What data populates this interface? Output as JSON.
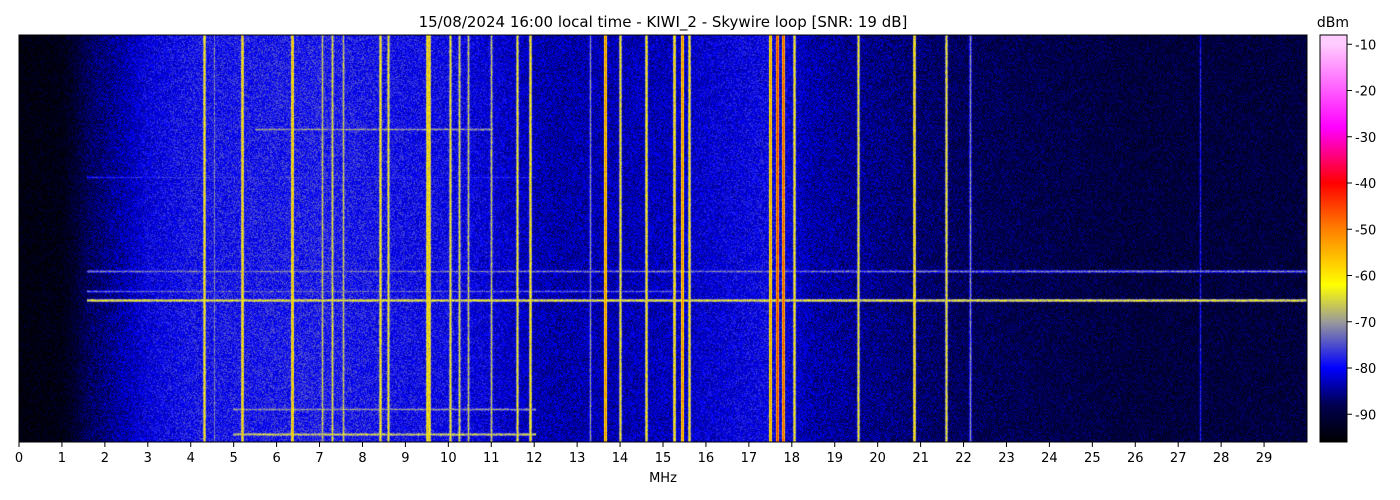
{
  "chart_data": {
    "type": "heatmap",
    "title": "15/08/2024 16:00 local time - KIWI_2 - Skywire loop [SNR: 19 dB]",
    "xlabel": "MHz",
    "ylabel": "",
    "xlim": [
      0,
      30
    ],
    "x_ticks": [
      "0",
      "1",
      "2",
      "3",
      "4",
      "5",
      "6",
      "7",
      "8",
      "9",
      "10",
      "11",
      "12",
      "13",
      "14",
      "15",
      "16",
      "17",
      "18",
      "19",
      "20",
      "21",
      "22",
      "23",
      "24",
      "25",
      "26",
      "27",
      "28",
      "29"
    ],
    "colorbar": {
      "label": "dBm",
      "range": [
        -96,
        -8
      ],
      "ticks": [
        "-10",
        "-20",
        "-30",
        "-40",
        "-50",
        "-60",
        "-70",
        "-80",
        "-90"
      ],
      "tick_values": [
        -10,
        -20,
        -30,
        -40,
        -50,
        -60,
        -70,
        -80,
        -90
      ],
      "stops": [
        {
          "value": -96,
          "color": "#000000"
        },
        {
          "value": -88,
          "color": "#000050"
        },
        {
          "value": -80,
          "color": "#0000ff"
        },
        {
          "value": -70,
          "color": "#9a9a9a"
        },
        {
          "value": -62,
          "color": "#ffff00"
        },
        {
          "value": -50,
          "color": "#ff8000"
        },
        {
          "value": -40,
          "color": "#ff0000"
        },
        {
          "value": -28,
          "color": "#ff00ff"
        },
        {
          "value": -10,
          "color": "#ffccff"
        }
      ]
    },
    "noise_floor_profile": [
      {
        "mhz": 0.0,
        "dbm": -95
      },
      {
        "mhz": 1.0,
        "dbm": -94
      },
      {
        "mhz": 1.6,
        "dbm": -88
      },
      {
        "mhz": 3.0,
        "dbm": -81
      },
      {
        "mhz": 4.0,
        "dbm": -79
      },
      {
        "mhz": 7.0,
        "dbm": -78
      },
      {
        "mhz": 10.0,
        "dbm": -80
      },
      {
        "mhz": 12.5,
        "dbm": -84
      },
      {
        "mhz": 15.0,
        "dbm": -83
      },
      {
        "mhz": 17.5,
        "dbm": -80
      },
      {
        "mhz": 18.5,
        "dbm": -84
      },
      {
        "mhz": 22.0,
        "dbm": -88
      },
      {
        "mhz": 26.0,
        "dbm": -90
      },
      {
        "mhz": 30.0,
        "dbm": -90
      }
    ],
    "vertical_signals": [
      {
        "mhz": 4.3,
        "dbm": -60
      },
      {
        "mhz": 4.55,
        "dbm": -72
      },
      {
        "mhz": 5.2,
        "dbm": -58
      },
      {
        "mhz": 6.35,
        "dbm": -56
      },
      {
        "mhz": 7.05,
        "dbm": -66
      },
      {
        "mhz": 7.3,
        "dbm": -64
      },
      {
        "mhz": 7.55,
        "dbm": -66
      },
      {
        "mhz": 8.4,
        "dbm": -60
      },
      {
        "mhz": 8.6,
        "dbm": -62
      },
      {
        "mhz": 9.5,
        "dbm": -58
      },
      {
        "mhz": 9.55,
        "dbm": -58
      },
      {
        "mhz": 10.05,
        "dbm": -62
      },
      {
        "mhz": 10.25,
        "dbm": -64
      },
      {
        "mhz": 10.45,
        "dbm": -66
      },
      {
        "mhz": 11.0,
        "dbm": -66
      },
      {
        "mhz": 11.6,
        "dbm": -62
      },
      {
        "mhz": 11.9,
        "dbm": -60
      },
      {
        "mhz": 13.3,
        "dbm": -70
      },
      {
        "mhz": 13.65,
        "dbm": -50
      },
      {
        "mhz": 14.0,
        "dbm": -62
      },
      {
        "mhz": 14.6,
        "dbm": -60
      },
      {
        "mhz": 15.25,
        "dbm": -58
      },
      {
        "mhz": 15.45,
        "dbm": -50
      },
      {
        "mhz": 15.6,
        "dbm": -60
      },
      {
        "mhz": 17.5,
        "dbm": -52
      },
      {
        "mhz": 17.65,
        "dbm": -44
      },
      {
        "mhz": 17.8,
        "dbm": -46
      },
      {
        "mhz": 18.05,
        "dbm": -60
      },
      {
        "mhz": 19.55,
        "dbm": -62
      },
      {
        "mhz": 20.85,
        "dbm": -58
      },
      {
        "mhz": 21.6,
        "dbm": -62
      },
      {
        "mhz": 22.15,
        "dbm": -70
      },
      {
        "mhz": 27.5,
        "dbm": -78
      }
    ],
    "horizontal_signals": [
      {
        "from_mhz": 1.6,
        "to_mhz": 30,
        "row_fraction": 0.58,
        "dbm": -72
      },
      {
        "from_mhz": 1.6,
        "to_mhz": 30,
        "row_fraction": 0.65,
        "dbm": -64
      },
      {
        "from_mhz": 1.6,
        "to_mhz": 15.5,
        "row_fraction": 0.63,
        "dbm": -74
      },
      {
        "from_mhz": 1.6,
        "to_mhz": 12.0,
        "row_fraction": 0.35,
        "dbm": -78
      },
      {
        "from_mhz": 5.5,
        "to_mhz": 11.0,
        "row_fraction": 0.23,
        "dbm": -70
      },
      {
        "from_mhz": 5.0,
        "to_mhz": 12.0,
        "row_fraction": 0.92,
        "dbm": -70
      },
      {
        "from_mhz": 5.0,
        "to_mhz": 12.0,
        "row_fraction": 0.98,
        "dbm": -66
      }
    ]
  }
}
